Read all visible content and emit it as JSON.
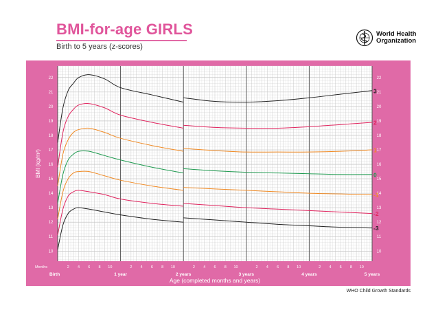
{
  "header": {
    "title": "BMI-for-age GIRLS",
    "subtitle": "Birth to 5 years (z-scores)",
    "org_line1": "World Health",
    "org_line2": "Organization"
  },
  "footer": {
    "source": "WHO Child Growth Standards"
  },
  "colors": {
    "frame": "#e06aa7",
    "plot_bg": "#ffffff",
    "grid": "#d4d4d4",
    "sd3": "#222222",
    "sd2": "#e0245e",
    "sd1": "#f08a24",
    "median": "#1e9a4f"
  },
  "chart_data": {
    "type": "line",
    "xlabel": "Age (completed months and years)",
    "ylabel": "BMI (kg/m²)",
    "x_unit_label": "Months",
    "xlim": [
      0,
      60
    ],
    "ylim": [
      9.3,
      22.8
    ],
    "y_ticks": [
      10,
      11,
      12,
      13,
      14,
      15,
      16,
      17,
      18,
      19,
      20,
      21,
      22
    ],
    "month_tick_labels": [
      "2",
      "4",
      "6",
      "8",
      "10"
    ],
    "year_labels": [
      {
        "month": 0,
        "label": "Birth"
      },
      {
        "month": 12,
        "label": "1 year"
      },
      {
        "month": 24,
        "label": "2 years"
      },
      {
        "month": 36,
        "label": "3 years"
      },
      {
        "month": 48,
        "label": "4 years"
      },
      {
        "month": 60,
        "label": "5 years"
      }
    ],
    "grid": true,
    "series": [
      {
        "name": "3",
        "color_key": "sd3",
        "x": [
          0,
          1,
          2,
          3,
          4,
          6,
          9,
          12,
          18,
          24,
          24,
          30,
          36,
          42,
          48,
          54,
          60
        ],
        "y": [
          17.5,
          19.9,
          21.1,
          21.6,
          22.0,
          22.2,
          21.9,
          21.3,
          20.8,
          20.3,
          20.6,
          20.35,
          20.3,
          20.4,
          20.6,
          20.85,
          21.1
        ]
      },
      {
        "name": "2",
        "color_key": "sd2",
        "x": [
          0,
          1,
          2,
          3,
          4,
          6,
          9,
          12,
          18,
          24,
          24,
          30,
          36,
          42,
          48,
          54,
          60
        ],
        "y": [
          15.8,
          18.2,
          19.3,
          19.8,
          20.1,
          20.2,
          19.9,
          19.4,
          18.9,
          18.5,
          18.7,
          18.55,
          18.5,
          18.5,
          18.6,
          18.75,
          18.9
        ]
      },
      {
        "name": "1",
        "color_key": "sd1",
        "x": [
          0,
          1,
          2,
          3,
          4,
          6,
          9,
          12,
          18,
          24,
          24,
          30,
          36,
          42,
          48,
          54,
          60
        ],
        "y": [
          14.5,
          16.7,
          17.7,
          18.2,
          18.4,
          18.5,
          18.2,
          17.8,
          17.3,
          16.9,
          17.1,
          16.95,
          16.85,
          16.85,
          16.85,
          16.9,
          17.0
        ]
      },
      {
        "name": "0",
        "color_key": "median",
        "x": [
          0,
          1,
          2,
          3,
          4,
          6,
          9,
          12,
          18,
          24,
          24,
          30,
          36,
          42,
          48,
          54,
          60
        ],
        "y": [
          13.3,
          15.3,
          16.3,
          16.7,
          16.9,
          16.9,
          16.6,
          16.3,
          15.8,
          15.4,
          15.7,
          15.55,
          15.45,
          15.4,
          15.35,
          15.3,
          15.3
        ]
      },
      {
        "name": "-1",
        "color_key": "sd1",
        "x": [
          0,
          1,
          2,
          3,
          4,
          6,
          9,
          12,
          18,
          24,
          24,
          30,
          36,
          42,
          48,
          54,
          60
        ],
        "y": [
          12.2,
          14.1,
          15.0,
          15.4,
          15.5,
          15.5,
          15.2,
          14.9,
          14.5,
          14.2,
          14.4,
          14.3,
          14.2,
          14.1,
          14.0,
          13.95,
          13.9
        ]
      },
      {
        "name": "-2",
        "color_key": "sd2",
        "x": [
          0,
          1,
          2,
          3,
          4,
          6,
          9,
          12,
          18,
          24,
          24,
          30,
          36,
          42,
          48,
          54,
          60
        ],
        "y": [
          11.1,
          12.9,
          13.8,
          14.1,
          14.2,
          14.1,
          13.9,
          13.6,
          13.3,
          13.1,
          13.3,
          13.15,
          13.0,
          12.9,
          12.8,
          12.7,
          12.6
        ]
      },
      {
        "name": "-3",
        "color_key": "sd3",
        "x": [
          0,
          1,
          2,
          3,
          4,
          6,
          9,
          12,
          18,
          24,
          24,
          30,
          36,
          42,
          48,
          54,
          60
        ],
        "y": [
          10.1,
          11.8,
          12.6,
          12.9,
          13.0,
          12.9,
          12.7,
          12.5,
          12.2,
          12.0,
          12.3,
          12.15,
          12.0,
          11.85,
          11.75,
          11.65,
          11.6
        ]
      }
    ]
  }
}
